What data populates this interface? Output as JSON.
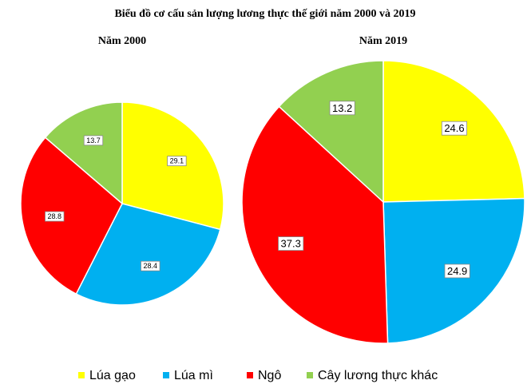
{
  "title": "Biểu đồ cơ cấu sản lượng lương thực thế giới năm 2000 và 2019",
  "chart_data": [
    {
      "type": "pie",
      "title": "Năm 2000",
      "categories": [
        "Lúa gạo",
        "Lúa mì",
        "Ngô",
        "Cây lương thực khác"
      ],
      "values": [
        29.1,
        28.4,
        28.8,
        13.7
      ],
      "colors": [
        "#ffff00",
        "#00b0f0",
        "#ff0000",
        "#92d050"
      ]
    },
    {
      "type": "pie",
      "title": "Năm 2019",
      "categories": [
        "Lúa gạo",
        "Lúa mì",
        "Ngô",
        "Cây lương thực khác"
      ],
      "values": [
        24.6,
        24.9,
        37.3,
        13.2
      ],
      "colors": [
        "#ffff00",
        "#00b0f0",
        "#ff0000",
        "#92d050"
      ]
    }
  ]
}
